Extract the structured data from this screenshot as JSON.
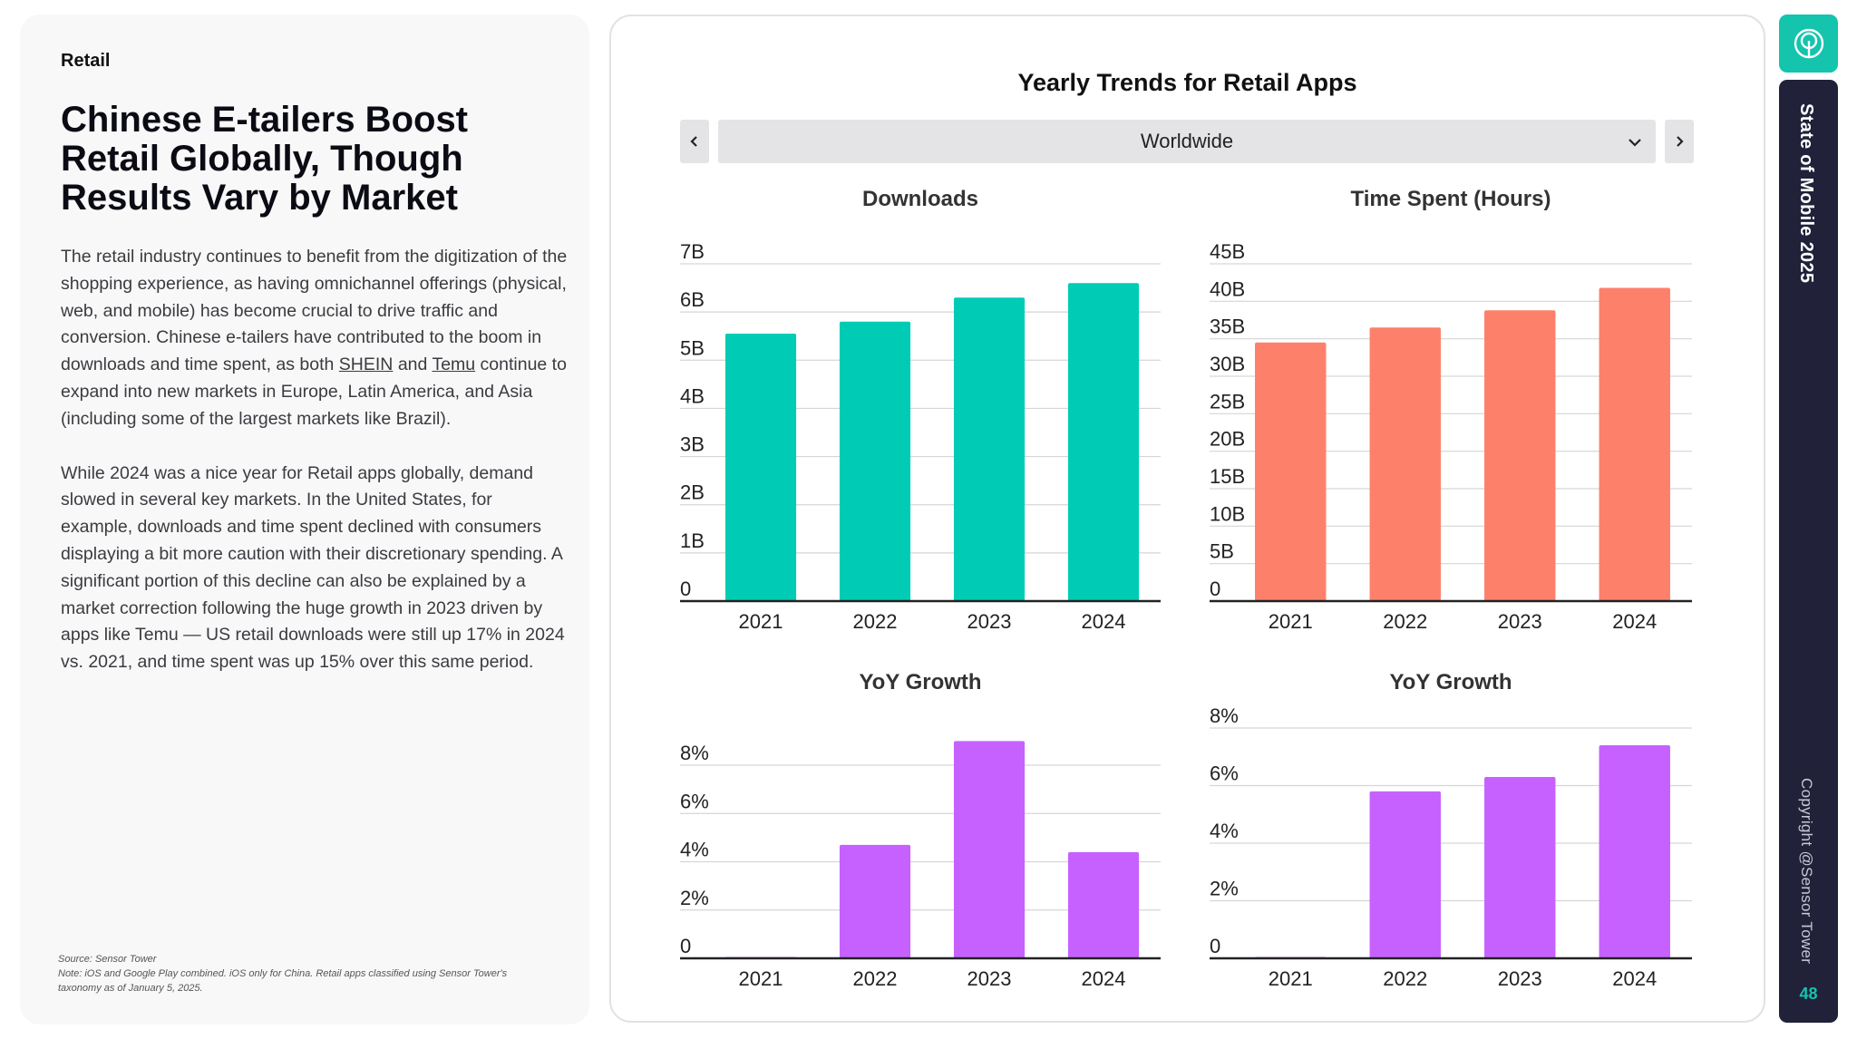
{
  "left": {
    "kicker": "Retail",
    "headline": "Chinese E-tailers Boost Retail Globally, Though Results Vary by Market",
    "paragraph1_a": "The retail industry continues to benefit from the digitization of the shopping experience, as having omnichannel offerings (physical, web, and mobile) has become crucial to drive traffic and conversion. Chinese e-tailers have contributed to the boom in downloads and time spent, as both ",
    "link_shein": "SHEIN",
    "paragraph1_b": " and ",
    "link_temu": "Temu",
    "paragraph1_c": " continue to expand into new markets in Europe, Latin America, and Asia (including some of the largest markets like Brazil).",
    "paragraph2": "While 2024 was a nice year for Retail apps globally, demand slowed in several key markets. In the United States, for example, downloads and time spent declined with consumers displaying a bit more caution with their discretionary spending. A significant portion of this decline can also be explained by a market correction following the huge growth in 2023 driven by apps like Temu — US retail downloads were still up 17% in 2024 vs. 2021, and time spent was up 15% over this same period.",
    "source": "Source: Sensor Tower",
    "note": "Note: iOS and Google Play combined. iOS only for China. Retail apps classified using Sensor Tower's taxonomy as of January 5, 2025."
  },
  "card": {
    "title": "Yearly Trends for Retail Apps",
    "region": "Worldwide"
  },
  "sidebar": {
    "title": "State of Mobile 2025",
    "copyright": "Copyright @Sensor Tower",
    "page": "48"
  },
  "colors": {
    "downloads": "#00ccb5",
    "time_spent": "#fd806b",
    "yoy": "#c661ff",
    "brand": "#14c4ad",
    "sidebar_bg": "#21213a"
  },
  "chart_data": [
    {
      "id": "downloads",
      "type": "bar",
      "title": "Downloads",
      "categories": [
        "2021",
        "2022",
        "2023",
        "2024"
      ],
      "values": [
        5.55,
        5.8,
        6.3,
        6.6
      ],
      "unit": "B",
      "ylim": [
        0,
        7
      ],
      "yticks": [
        0,
        1,
        2,
        3,
        4,
        5,
        6,
        7
      ],
      "ytick_labels": [
        "0",
        "1B",
        "2B",
        "3B",
        "4B",
        "5B",
        "6B",
        "7B"
      ],
      "color_key": "downloads"
    },
    {
      "id": "time_spent",
      "type": "bar",
      "title": "Time Spent (Hours)",
      "categories": [
        "2021",
        "2022",
        "2023",
        "2024"
      ],
      "values": [
        34.5,
        36.5,
        38.8,
        41.8
      ],
      "unit": "B",
      "ylim": [
        0,
        45
      ],
      "yticks": [
        0,
        5,
        10,
        15,
        20,
        25,
        30,
        35,
        40,
        45
      ],
      "ytick_labels": [
        "0",
        "5B",
        "10B",
        "15B",
        "20B",
        "25B",
        "30B",
        "35B",
        "40B",
        "45B"
      ],
      "color_key": "time_spent"
    },
    {
      "id": "downloads_yoy",
      "type": "bar",
      "title": "YoY Growth",
      "categories": [
        "2021",
        "2022",
        "2023",
        "2024"
      ],
      "values": [
        0,
        4.7,
        9.0,
        4.4
      ],
      "unit": "%",
      "ylim": [
        0,
        9
      ],
      "yticks": [
        0,
        2,
        4,
        6,
        8
      ],
      "ytick_labels": [
        "0",
        "2%",
        "4%",
        "6%",
        "8%"
      ],
      "color_key": "yoy"
    },
    {
      "id": "time_spent_yoy",
      "type": "bar",
      "title": "YoY Growth",
      "categories": [
        "2021",
        "2022",
        "2023",
        "2024"
      ],
      "values": [
        0,
        5.8,
        6.3,
        7.4
      ],
      "unit": "%",
      "ylim": [
        0,
        8
      ],
      "yticks": [
        0,
        2,
        4,
        6,
        8
      ],
      "ytick_labels": [
        "0",
        "2%",
        "4%",
        "6%",
        "8%"
      ],
      "color_key": "yoy"
    }
  ]
}
